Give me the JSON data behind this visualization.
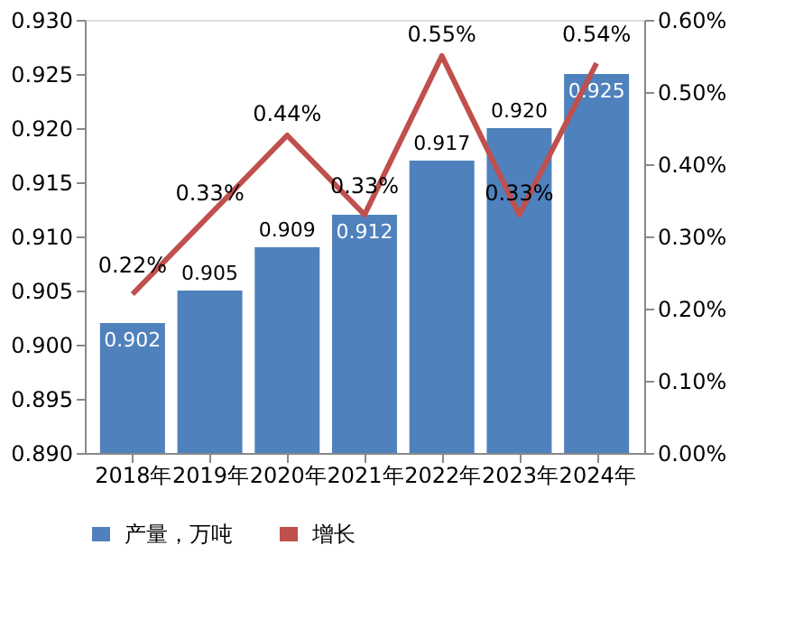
{
  "chart_data": {
    "type": "bar",
    "categories": [
      "2018年",
      "2019年",
      "2020年",
      "2021年",
      "2022年",
      "2023年",
      "2024年"
    ],
    "series": [
      {
        "name": "产量，万吨",
        "color": "#4f81bd",
        "values": [
          0.902,
          0.905,
          0.909,
          0.912,
          0.917,
          0.92,
          0.925
        ],
        "value_labels": [
          "0.902",
          "0.905",
          "0.909",
          "0.912",
          "0.917",
          "0.920",
          "0.925"
        ]
      },
      {
        "name": "增长",
        "type": "line",
        "axis": "y2",
        "color": "#c0504d",
        "values": [
          0.22,
          0.33,
          0.44,
          0.33,
          0.55,
          0.33,
          0.54
        ],
        "value_labels": [
          "0.22%",
          "0.33%",
          "0.44%",
          "0.33%",
          "0.55%",
          "0.33%",
          "0.54%"
        ]
      }
    ],
    "ylim": [
      0.89,
      0.93
    ],
    "yticks": [
      {
        "value": 0.89,
        "label": "0.890"
      },
      {
        "value": 0.895,
        "label": "0.895"
      },
      {
        "value": 0.9,
        "label": "0.900"
      },
      {
        "value": 0.905,
        "label": "0.905"
      },
      {
        "value": 0.91,
        "label": "0.910"
      },
      {
        "value": 0.915,
        "label": "0.915"
      },
      {
        "value": 0.92,
        "label": "0.920"
      },
      {
        "value": 0.925,
        "label": "0.925"
      },
      {
        "value": 0.93,
        "label": "0.930"
      }
    ],
    "y2lim": [
      0,
      0.6
    ],
    "y2ticks": [
      {
        "value": 0,
        "label": "0.00%"
      },
      {
        "value": 0.1,
        "label": "0.10%"
      },
      {
        "value": 0.2,
        "label": "0.20%"
      },
      {
        "value": 0.3,
        "label": "0.30%"
      },
      {
        "value": 0.4,
        "label": "0.40%"
      },
      {
        "value": 0.5,
        "label": "0.50%"
      },
      {
        "value": 0.6,
        "label": "0.60%"
      }
    ],
    "grid": false,
    "legend": "bottom",
    "line_style": "solid",
    "marker": "none"
  }
}
